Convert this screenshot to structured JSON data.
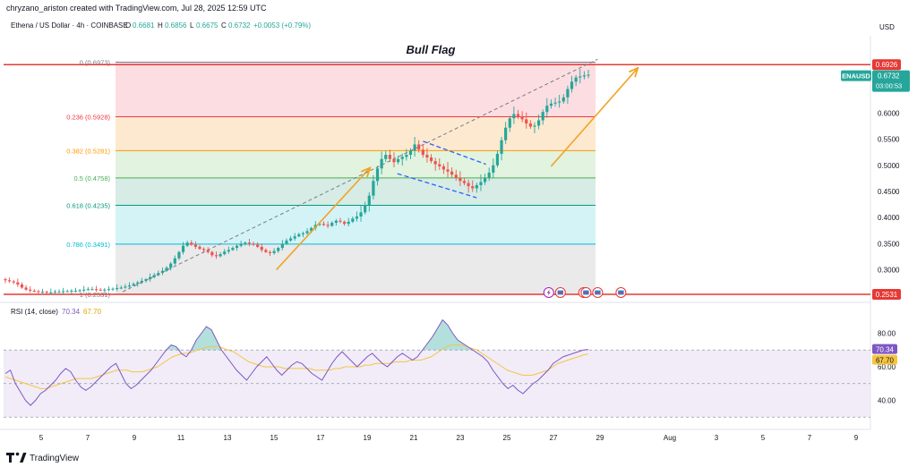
{
  "header": {
    "attribution": "chryzano_ariston created with TradingView.com, Jul 28, 2025 12:59 UTC",
    "symbol_line": "Ethena / US Dollar · 4h · COINBASE",
    "ohlc": {
      "o_label": "O",
      "o": "0.6681",
      "h_label": "H",
      "h": "0.6856",
      "l_label": "L",
      "l": "0.6675",
      "c_label": "C",
      "c": "0.6732",
      "change": "+0.0053 (+0.79%)"
    }
  },
  "currency": "USD",
  "footer": {
    "logo": "TradingView"
  },
  "colors": {
    "up": "#26a69a",
    "down": "#ef5350",
    "arrow": "#f2a325",
    "flag": "#2962ff",
    "rsi": "#7e57c2",
    "rsi_ma": "#f5c542",
    "hline": "#e53935"
  },
  "chart_data": [
    {
      "type": "candlestick",
      "title": "Bull Flag",
      "y_axis": {
        "ylim": [
          0.24,
          0.75
        ],
        "ticks": [
          "0.6000",
          "0.5500",
          "0.5000",
          "0.4500",
          "0.4000",
          "0.3500",
          "0.3000"
        ],
        "tick_values": [
          0.6,
          0.55,
          0.5,
          0.45,
          0.4,
          0.35,
          0.3
        ]
      },
      "x_axis": {
        "ticks": [
          "5",
          "7",
          "9",
          "11",
          "13",
          "15",
          "17",
          "19",
          "21",
          "23",
          "25",
          "27",
          "29",
          "Aug",
          "3",
          "5",
          "7",
          "9"
        ],
        "tick_days": [
          5,
          7,
          9,
          11,
          13,
          15,
          17,
          19,
          21,
          23,
          25,
          27,
          29,
          32,
          34,
          36,
          38,
          40
        ]
      },
      "fib_levels": [
        {
          "label": "0 (0.6973)",
          "value": 0.6973,
          "color": "#787b86"
        },
        {
          "label": "0.236 (0.5928)",
          "value": 0.5928,
          "color": "#f23645"
        },
        {
          "label": "0.382 (0.5281)",
          "value": 0.5281,
          "color": "#ff9800"
        },
        {
          "label": "0.5 (0.4758)",
          "value": 0.4758,
          "color": "#4caf50"
        },
        {
          "label": "0.618 (0.4235)",
          "value": 0.4235,
          "color": "#089981"
        },
        {
          "label": "0.786 (0.3491)",
          "value": 0.3491,
          "color": "#00bcd4"
        },
        {
          "label": "1 (0.2531)",
          "value": 0.2531,
          "color": "#787b86"
        }
      ],
      "price_tags": [
        {
          "label": "0.6926",
          "value": 0.6926,
          "kind": "line"
        },
        {
          "label": "0.2531",
          "value": 0.2531,
          "kind": "line"
        }
      ],
      "ticker_tag": {
        "symbol": "ENAUSD",
        "price": "0.6732",
        "countdown": "03:00:53",
        "value": 0.6732
      },
      "closes": [
        0.28,
        0.278,
        0.276,
        0.272,
        0.266,
        0.262,
        0.26,
        0.259,
        0.258,
        0.258,
        0.257,
        0.257,
        0.258,
        0.258,
        0.259,
        0.259,
        0.26,
        0.26,
        0.261,
        0.262,
        0.263,
        0.263,
        0.262,
        0.261,
        0.262,
        0.263,
        0.264,
        0.265,
        0.266,
        0.268,
        0.27,
        0.273,
        0.276,
        0.279,
        0.282,
        0.286,
        0.29,
        0.294,
        0.298,
        0.304,
        0.312,
        0.322,
        0.334,
        0.346,
        0.352,
        0.348,
        0.344,
        0.34,
        0.338,
        0.334,
        0.328,
        0.326,
        0.33,
        0.335,
        0.338,
        0.342,
        0.346,
        0.35,
        0.352,
        0.35,
        0.348,
        0.344,
        0.338,
        0.334,
        0.332,
        0.336,
        0.342,
        0.35,
        0.356,
        0.36,
        0.364,
        0.368,
        0.37,
        0.374,
        0.38,
        0.386,
        0.388,
        0.386,
        0.384,
        0.39,
        0.394,
        0.392,
        0.388,
        0.392,
        0.398,
        0.402,
        0.41,
        0.424,
        0.442,
        0.47,
        0.494,
        0.512,
        0.52,
        0.512,
        0.506,
        0.512,
        0.516,
        0.52,
        0.528,
        0.54,
        0.53,
        0.52,
        0.515,
        0.508,
        0.502,
        0.498,
        0.492,
        0.488,
        0.482,
        0.476,
        0.47,
        0.466,
        0.46,
        0.456,
        0.462,
        0.468,
        0.476,
        0.486,
        0.5,
        0.522,
        0.548,
        0.572,
        0.59,
        0.598,
        0.594,
        0.588,
        0.58,
        0.574,
        0.576,
        0.586,
        0.602,
        0.614,
        0.618,
        0.62,
        0.622,
        0.63,
        0.646,
        0.66,
        0.668,
        0.67,
        0.672,
        0.6732
      ],
      "flag": {
        "upper": [
          [
            21.4,
            0.546
          ],
          [
            24.1,
            0.502
          ]
        ],
        "lower": [
          [
            20.3,
            0.484
          ],
          [
            23.7,
            0.438
          ]
        ]
      },
      "arrows": [
        {
          "from": [
            15.1,
            0.3
          ],
          "to": [
            19.1,
            0.494
          ]
        },
        {
          "from": [
            26.9,
            0.498
          ],
          "to": [
            30.6,
            0.685
          ]
        },
        {
          "from": [
            8.5,
            0.258
          ],
          "to": [
            28.9,
            0.703
          ],
          "dashed": true
        }
      ],
      "event_days": [
        26.8,
        27.3,
        28.3,
        28.4,
        28.9,
        29.9
      ]
    },
    {
      "type": "line",
      "title": "RSI (14, close)",
      "series": [
        {
          "name": "RSI",
          "value_label": "70.34",
          "values": [
            56,
            58,
            50,
            45,
            40,
            37,
            40,
            44,
            46,
            49,
            52,
            56,
            59,
            57,
            52,
            48,
            46,
            48,
            51,
            54,
            57,
            60,
            62,
            56,
            50,
            47,
            49,
            52,
            55,
            58,
            62,
            66,
            70,
            73,
            72,
            68,
            66,
            70,
            76,
            80,
            84,
            82,
            76,
            70,
            66,
            62,
            58,
            55,
            52,
            56,
            60,
            63,
            66,
            62,
            58,
            55,
            58,
            61,
            63,
            62,
            59,
            56,
            54,
            52,
            57,
            62,
            66,
            69,
            66,
            63,
            60,
            63,
            66,
            68,
            65,
            62,
            60,
            63,
            66,
            68,
            66,
            64,
            66,
            70,
            74,
            78,
            83,
            88,
            85,
            80,
            76,
            74,
            72,
            70,
            68,
            66,
            63,
            58,
            54,
            50,
            47,
            49,
            46,
            44,
            47,
            50,
            52,
            55,
            58,
            62,
            64,
            66,
            67,
            68,
            69,
            70,
            70.34
          ]
        },
        {
          "name": "MA",
          "value_label": "67.70",
          "values": [
            54,
            53,
            52,
            51,
            50,
            49,
            48,
            47,
            47,
            48,
            49,
            50,
            51,
            52,
            53,
            53,
            53,
            53,
            54,
            55,
            56,
            57,
            58,
            58,
            58,
            57,
            57,
            57,
            58,
            59,
            60,
            62,
            64,
            66,
            67,
            68,
            68,
            69,
            70,
            71,
            72,
            72,
            72,
            71,
            70,
            69,
            67,
            65,
            63,
            62,
            61,
            60,
            60,
            60,
            60,
            59,
            59,
            59,
            59,
            59,
            59,
            58,
            58,
            58,
            58,
            59,
            59,
            60,
            60,
            60,
            60,
            61,
            61,
            62,
            62,
            62,
            62,
            63,
            63,
            63,
            64,
            64,
            64,
            65,
            66,
            68,
            70,
            72,
            73,
            73,
            73,
            72,
            71,
            70,
            68,
            66,
            64,
            62,
            60,
            58,
            57,
            56,
            55,
            55,
            55,
            56,
            57,
            58,
            60,
            62,
            63,
            64,
            65,
            66,
            67,
            67.7
          ]
        }
      ],
      "ylim": [
        28,
        92
      ],
      "ticks": [
        "80.00",
        "60.00",
        "40.00"
      ],
      "tick_values": [
        80,
        60,
        40
      ],
      "band": [
        30,
        70
      ]
    }
  ]
}
